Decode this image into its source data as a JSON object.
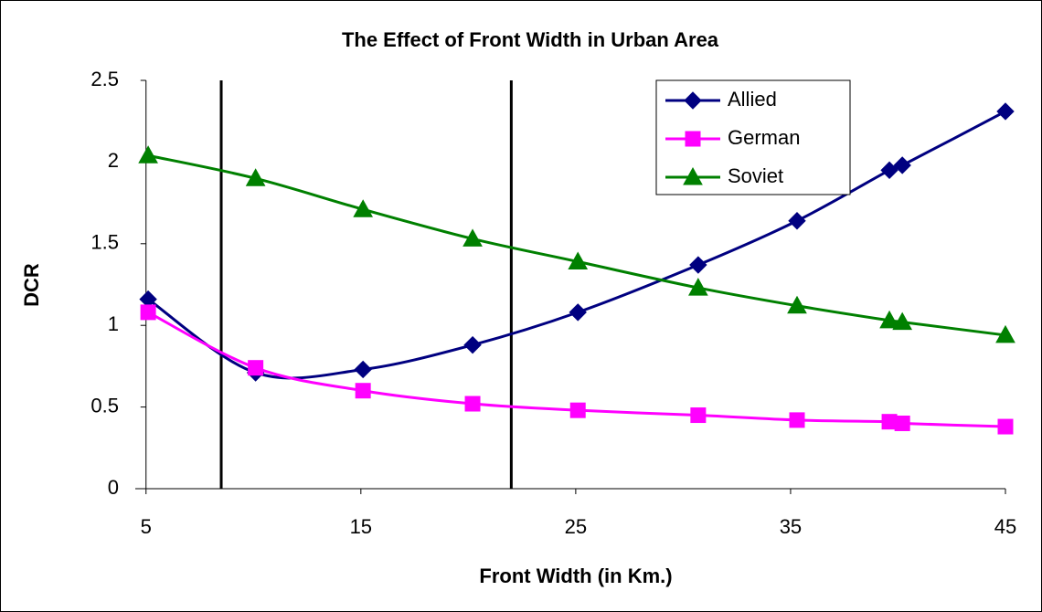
{
  "chart_data": {
    "type": "line",
    "title": "The Effect of Front Width in Urban Area",
    "x_label": "Front Width (in Km.)",
    "y_label": "DCR",
    "x": [
      5.1,
      10.1,
      15.1,
      20.2,
      25.1,
      30.7,
      35.3,
      39.6,
      40.2,
      45
    ],
    "series": [
      {
        "name": "Allied",
        "color": "#000080",
        "marker": "diamond",
        "values": [
          1.16,
          0.71,
          0.73,
          0.88,
          1.08,
          1.37,
          1.64,
          1.95,
          1.98,
          2.31
        ]
      },
      {
        "name": "German",
        "color": "#ff00ff",
        "marker": "square",
        "values": [
          1.08,
          0.74,
          0.6,
          0.52,
          0.48,
          0.45,
          0.42,
          0.41,
          0.4,
          0.38
        ]
      },
      {
        "name": "Soviet",
        "color": "#008000",
        "marker": "triangle",
        "values": [
          2.04,
          1.9,
          1.71,
          1.53,
          1.39,
          1.23,
          1.12,
          1.03,
          1.02,
          0.94
        ]
      }
    ],
    "reference_lines": [
      8.5,
      22
    ],
    "xlim": [
      4.5,
      45
    ],
    "xticks": [
      5,
      15,
      25,
      35,
      45
    ],
    "ylim": [
      0,
      2.5
    ],
    "yticks": [
      0,
      0.5,
      1,
      1.5,
      2,
      2.5
    ],
    "legend": "top-right",
    "grid": false
  }
}
